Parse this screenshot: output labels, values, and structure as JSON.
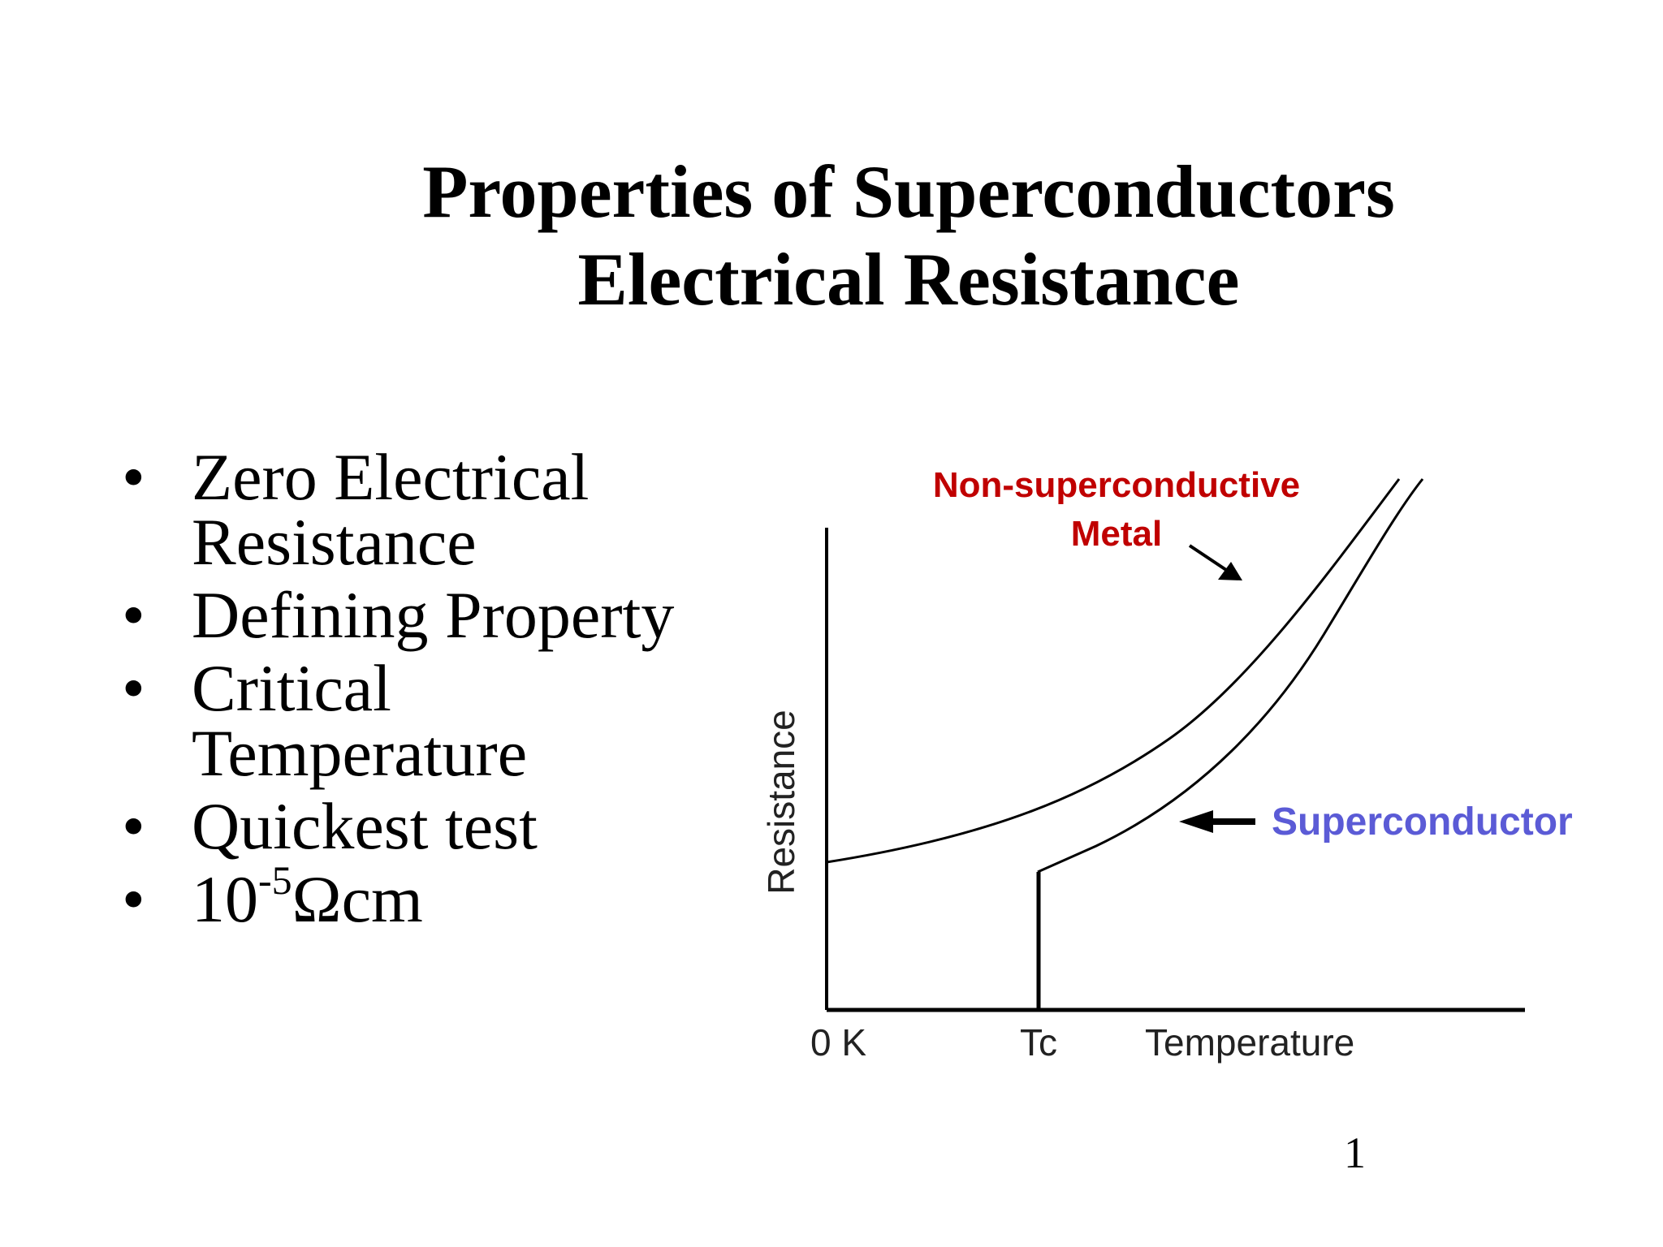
{
  "title": {
    "line1": "Properties of Superconductors",
    "line2": "Electrical Resistance"
  },
  "bullets": [
    {
      "line1": "Zero Electrical",
      "line2": "Resistance"
    },
    {
      "line1": "Defining Property"
    },
    {
      "line1": "Critical",
      "line2": "Temperature"
    },
    {
      "line1": "Quickest test"
    },
    {
      "base": "10",
      "sup": "-5",
      "rest": "Ωcm"
    }
  ],
  "diagram": {
    "y_axis_label": "Resistance",
    "x_axis_label": "Temperature",
    "x_ticks": [
      "0 K",
      "Tc"
    ],
    "metal_label_line1": "Non-superconductive",
    "metal_label_line2": "Metal",
    "superconductor_label": "Superconductor",
    "colors": {
      "metal_label": "#c00000",
      "superconductor_label": "#5b5bd6",
      "curves": "#000000"
    }
  },
  "page_number": "1"
}
